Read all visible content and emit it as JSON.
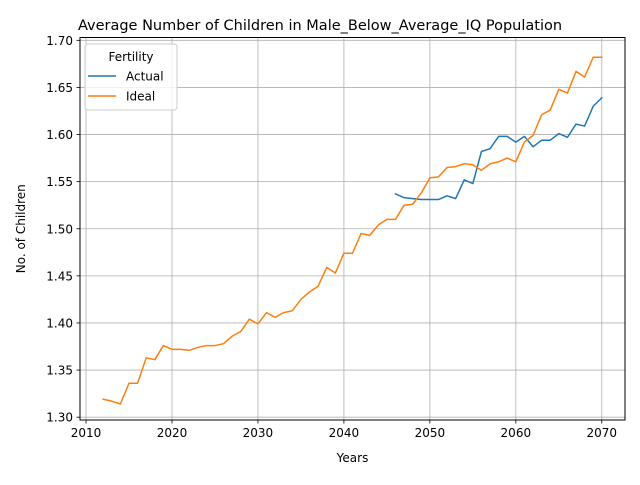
{
  "chart_data": {
    "type": "line",
    "title": "Average Number of Children in Male_Below_Average_IQ Population",
    "xlabel": "Years",
    "ylabel": "No. of Children",
    "xlim": [
      2009.3,
      2072.7
    ],
    "ylim": [
      1.297,
      1.703
    ],
    "xticks": [
      "2010",
      "2020",
      "2030",
      "2040",
      "2050",
      "2060",
      "2070"
    ],
    "yticks": [
      "1.30",
      "1.35",
      "1.40",
      "1.45",
      "1.50",
      "1.55",
      "1.60",
      "1.65",
      "1.70"
    ],
    "grid": true,
    "legend": {
      "title": "Fertility",
      "position": "top-left"
    },
    "series": [
      {
        "name": "Actual",
        "color": "#1f77b4",
        "x": [
          2046,
          2047,
          2048,
          2049,
          2050,
          2051,
          2052,
          2053,
          2054,
          2055,
          2056,
          2057,
          2058,
          2059,
          2060,
          2061,
          2062,
          2063,
          2064,
          2065,
          2066,
          2067,
          2068,
          2069,
          2070
        ],
        "y": [
          1.537,
          1.533,
          1.532,
          1.531,
          1.531,
          1.531,
          1.535,
          1.532,
          1.552,
          1.548,
          1.582,
          1.585,
          1.598,
          1.598,
          1.592,
          1.598,
          1.587,
          1.594,
          1.594,
          1.601,
          1.597,
          1.611,
          1.609,
          1.63,
          1.639
        ]
      },
      {
        "name": "Ideal",
        "color": "#ff7f0e",
        "x": [
          2012,
          2013,
          2014,
          2015,
          2016,
          2017,
          2018,
          2019,
          2020,
          2021,
          2022,
          2023,
          2024,
          2025,
          2026,
          2027,
          2028,
          2029,
          2030,
          2031,
          2032,
          2033,
          2034,
          2035,
          2036,
          2037,
          2038,
          2039,
          2040,
          2041,
          2042,
          2043,
          2044,
          2045,
          2046,
          2047,
          2048,
          2049,
          2050,
          2051,
          2052,
          2053,
          2054,
          2055,
          2056,
          2057,
          2058,
          2059,
          2060,
          2061,
          2062,
          2063,
          2064,
          2065,
          2066,
          2067,
          2068,
          2069,
          2070
        ],
        "y": [
          1.319,
          1.317,
          1.314,
          1.336,
          1.336,
          1.363,
          1.361,
          1.376,
          1.372,
          1.372,
          1.371,
          1.374,
          1.376,
          1.376,
          1.378,
          1.386,
          1.391,
          1.404,
          1.399,
          1.411,
          1.406,
          1.411,
          1.413,
          1.425,
          1.433,
          1.439,
          1.459,
          1.453,
          1.474,
          1.474,
          1.495,
          1.493,
          1.504,
          1.51,
          1.51,
          1.525,
          1.526,
          1.538,
          1.554,
          1.555,
          1.565,
          1.566,
          1.569,
          1.568,
          1.562,
          1.569,
          1.571,
          1.575,
          1.571,
          1.592,
          1.599,
          1.621,
          1.626,
          1.648,
          1.644,
          1.667,
          1.661,
          1.682,
          1.682
        ]
      }
    ]
  }
}
